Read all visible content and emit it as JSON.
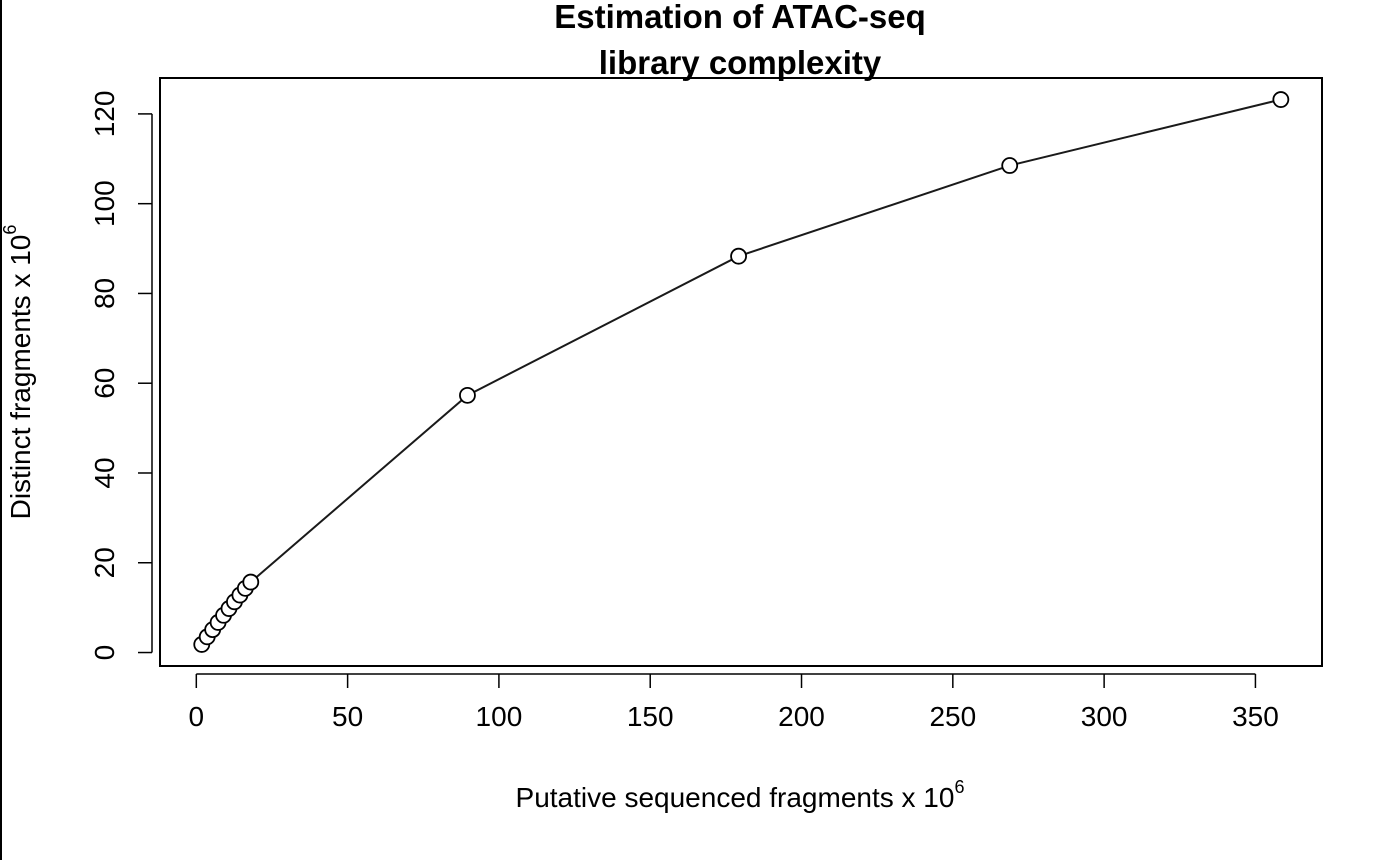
{
  "chart_data": {
    "type": "line",
    "title_lines": [
      "Estimation of ATAC-seq",
      "library complexity"
    ],
    "xlabel": "Putative sequenced fragments x 10",
    "xlabel_exponent": "6",
    "ylabel": "Distinct fragments x 10",
    "ylabel_exponent": "6",
    "xlim": [
      -12,
      372
    ],
    "ylim": [
      -3,
      128
    ],
    "x_ticks": [
      0,
      50,
      100,
      150,
      200,
      250,
      300,
      350
    ],
    "y_ticks": [
      0,
      20,
      40,
      60,
      80,
      100,
      120
    ],
    "grid": false,
    "legend": "none",
    "markers": "open-circle",
    "colors": {
      "line": "#1a1a1a",
      "marker": "#000000",
      "axes": "#000000"
    },
    "series": [
      {
        "x": [
          1.8,
          3.6,
          5.4,
          7.2,
          9.0,
          10.8,
          12.6,
          14.4,
          16.2,
          18.0,
          89.6,
          179.2,
          268.8,
          358.4
        ],
        "y": [
          1.8,
          3.5,
          5.1,
          6.7,
          8.3,
          9.8,
          11.3,
          12.8,
          14.3,
          15.7,
          57.3,
          88.3,
          108.5,
          123.2
        ]
      }
    ]
  }
}
